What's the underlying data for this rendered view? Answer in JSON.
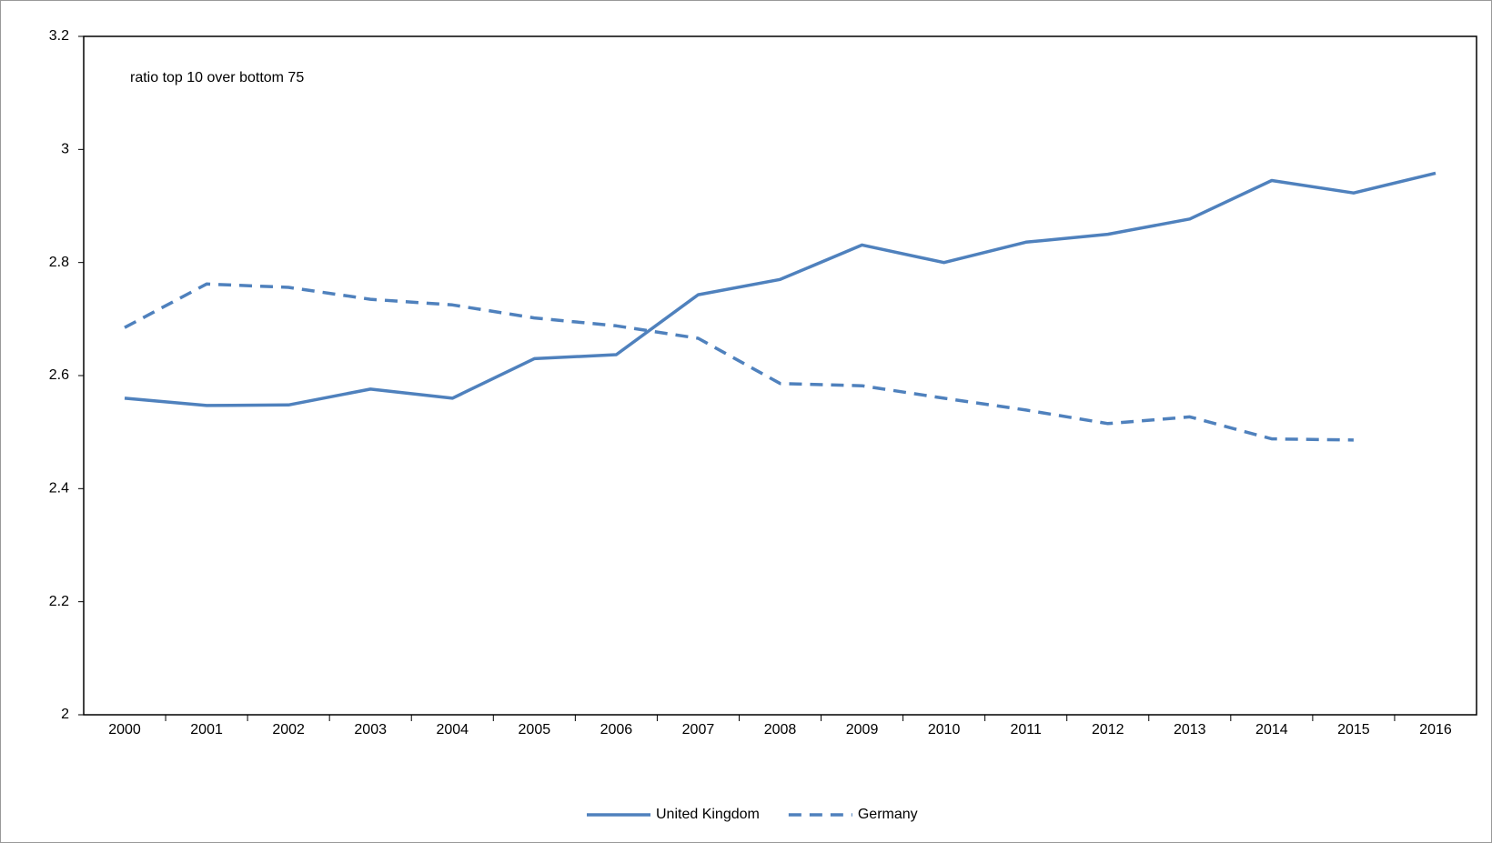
{
  "chart_data": {
    "type": "line",
    "annotation": "ratio top 10 over bottom 75",
    "categories": [
      "2000",
      "2001",
      "2002",
      "2003",
      "2004",
      "2005",
      "2006",
      "2007",
      "2008",
      "2009",
      "2010",
      "2011",
      "2012",
      "2013",
      "2014",
      "2015",
      "2016"
    ],
    "series": [
      {
        "name": "United Kingdom",
        "color": "#4f81bd",
        "dash": "solid",
        "values": [
          2.56,
          2.547,
          2.548,
          2.576,
          2.56,
          2.63,
          2.637,
          2.743,
          2.77,
          2.831,
          2.8,
          2.836,
          2.85,
          2.877,
          2.945,
          2.923,
          2.958
        ]
      },
      {
        "name": "Germany",
        "color": "#4f81bd",
        "dash": "dashed",
        "values": [
          2.685,
          2.762,
          2.756,
          2.735,
          2.725,
          2.702,
          2.688,
          2.666,
          2.586,
          2.582,
          2.56,
          2.539,
          2.515,
          2.527,
          2.488,
          2.486,
          null
        ]
      }
    ],
    "ylim": [
      2,
      3.2
    ],
    "yticks": [
      2,
      2.2,
      2.4,
      2.6,
      2.8,
      3,
      3.2
    ],
    "grid": false,
    "legend": "bottom"
  }
}
